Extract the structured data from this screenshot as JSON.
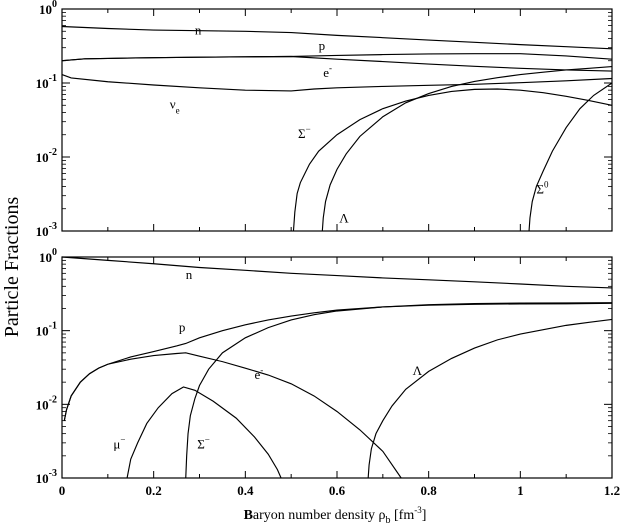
{
  "figure": {
    "ylabel": "Particle Fractions",
    "xlabel_parts": {
      "lead": "B",
      "rest": "aryon number density ",
      "sym": "ρ",
      "sub": "b",
      "unit_open": " [fm",
      "unit_exp": "-3",
      "unit_close": "]"
    }
  },
  "chart_data": [
    {
      "type": "line",
      "panel": "top",
      "yscale": "log",
      "xlim": [
        0,
        1.2
      ],
      "ylim": [
        0.001,
        1
      ],
      "xticks": [
        0,
        0.2,
        0.4,
        0.6,
        0.8,
        1,
        1.2
      ],
      "yticks": [
        {
          "value": 0.001,
          "base": "10",
          "exp": "-3"
        },
        {
          "value": 0.01,
          "base": "10",
          "exp": "-2"
        },
        {
          "value": 0.1,
          "base": "10",
          "exp": "-1"
        },
        {
          "value": 1,
          "base": "10",
          "exp": "0"
        }
      ],
      "series": [
        {
          "name": "n",
          "label": {
            "base": "n"
          },
          "label_at": [
            0.29,
            0.45
          ],
          "points": [
            [
              0,
              0.58
            ],
            [
              0.1,
              0.545
            ],
            [
              0.2,
              0.52
            ],
            [
              0.3,
              0.51
            ],
            [
              0.4,
              0.5
            ],
            [
              0.5,
              0.48
            ],
            [
              0.6,
              0.44
            ],
            [
              0.7,
              0.41
            ],
            [
              0.8,
              0.38
            ],
            [
              0.9,
              0.355
            ],
            [
              1.0,
              0.33
            ],
            [
              1.1,
              0.31
            ],
            [
              1.2,
              0.29
            ]
          ]
        },
        {
          "name": "p",
          "label": {
            "base": "p"
          },
          "label_at": [
            0.56,
            0.28
          ],
          "points": [
            [
              0,
              0.2
            ],
            [
              0.05,
              0.212
            ],
            [
              0.1,
              0.215
            ],
            [
              0.2,
              0.22
            ],
            [
              0.3,
              0.223
            ],
            [
              0.4,
              0.226
            ],
            [
              0.5,
              0.228
            ],
            [
              0.55,
              0.232
            ],
            [
              0.6,
              0.236
            ],
            [
              0.7,
              0.242
            ],
            [
              0.8,
              0.247
            ],
            [
              0.9,
              0.249
            ],
            [
              1.0,
              0.249
            ],
            [
              1.1,
              0.232
            ],
            [
              1.2,
              0.21
            ]
          ]
        },
        {
          "name": "e-",
          "label": {
            "base": "e",
            "sup": "-"
          },
          "label_at": [
            0.57,
            0.12
          ],
          "points": [
            [
              0,
              0.2
            ],
            [
              0.05,
              0.212
            ],
            [
              0.1,
              0.215
            ],
            [
              0.2,
              0.22
            ],
            [
              0.3,
              0.223
            ],
            [
              0.4,
              0.226
            ],
            [
              0.5,
              0.228
            ],
            [
              0.6,
              0.21
            ],
            [
              0.7,
              0.195
            ],
            [
              0.8,
              0.18
            ],
            [
              0.9,
              0.168
            ],
            [
              1.0,
              0.158
            ],
            [
              1.1,
              0.15
            ],
            [
              1.2,
              0.145
            ]
          ]
        },
        {
          "name": "νe",
          "label": {
            "base": "ν",
            "sub": "e"
          },
          "label_at": [
            0.235,
            0.045
          ],
          "points": [
            [
              0,
              0.13
            ],
            [
              0.02,
              0.117
            ],
            [
              0.1,
              0.104
            ],
            [
              0.2,
              0.094
            ],
            [
              0.3,
              0.086
            ],
            [
              0.4,
              0.08
            ],
            [
              0.5,
              0.078
            ],
            [
              0.55,
              0.083
            ],
            [
              0.6,
              0.086
            ],
            [
              0.7,
              0.09
            ],
            [
              0.8,
              0.093
            ],
            [
              0.9,
              0.096
            ],
            [
              1.0,
              0.101
            ],
            [
              1.1,
              0.107
            ],
            [
              1.2,
              0.115
            ]
          ]
        },
        {
          "name": "Σ-",
          "label": {
            "base": "Σ",
            "sup": "−"
          },
          "label_at": [
            0.515,
            0.018
          ],
          "points": [
            [
              0.505,
              0.001
            ],
            [
              0.508,
              0.0018
            ],
            [
              0.513,
              0.0032
            ],
            [
              0.52,
              0.0045
            ],
            [
              0.53,
              0.006
            ],
            [
              0.54,
              0.008
            ],
            [
              0.56,
              0.012
            ],
            [
              0.6,
              0.02
            ],
            [
              0.65,
              0.032
            ],
            [
              0.7,
              0.045
            ],
            [
              0.75,
              0.057
            ],
            [
              0.8,
              0.068
            ],
            [
              0.85,
              0.077
            ],
            [
              0.9,
              0.082
            ],
            [
              0.95,
              0.083
            ],
            [
              1.0,
              0.08
            ],
            [
              1.05,
              0.074
            ],
            [
              1.1,
              0.066
            ],
            [
              1.15,
              0.058
            ],
            [
              1.2,
              0.05
            ]
          ]
        },
        {
          "name": "Λ",
          "label": {
            "base": "Λ"
          },
          "label_at": [
            0.605,
            0.0013
          ],
          "points": [
            [
              0.568,
              0.001
            ],
            [
              0.57,
              0.0015
            ],
            [
              0.575,
              0.0025
            ],
            [
              0.585,
              0.0042
            ],
            [
              0.6,
              0.0068
            ],
            [
              0.62,
              0.011
            ],
            [
              0.65,
              0.019
            ],
            [
              0.7,
              0.035
            ],
            [
              0.75,
              0.054
            ],
            [
              0.8,
              0.072
            ],
            [
              0.85,
              0.09
            ],
            [
              0.9,
              0.105
            ],
            [
              0.95,
              0.118
            ],
            [
              1.0,
              0.13
            ],
            [
              1.05,
              0.14
            ],
            [
              1.1,
              0.15
            ],
            [
              1.15,
              0.158
            ],
            [
              1.2,
              0.167
            ]
          ]
        },
        {
          "name": "Σ0",
          "label": {
            "base": "Σ",
            "sup": "0"
          },
          "label_at": [
            1.035,
            0.0032
          ],
          "points": [
            [
              1.019,
              0.001
            ],
            [
              1.021,
              0.0015
            ],
            [
              1.026,
              0.0025
            ],
            [
              1.035,
              0.004
            ],
            [
              1.05,
              0.0065
            ],
            [
              1.07,
              0.012
            ],
            [
              1.1,
              0.025
            ],
            [
              1.13,
              0.045
            ],
            [
              1.16,
              0.068
            ],
            [
              1.2,
              0.1
            ]
          ]
        }
      ]
    },
    {
      "type": "line",
      "panel": "bottom",
      "yscale": "log",
      "xlim": [
        0,
        1.2
      ],
      "ylim": [
        0.001,
        1
      ],
      "xticks": [
        0,
        0.2,
        0.4,
        0.6,
        0.8,
        1,
        1.2
      ],
      "yticks": [
        {
          "value": 0.001,
          "base": "10",
          "exp": "-3"
        },
        {
          "value": 0.01,
          "base": "10",
          "exp": "-2"
        },
        {
          "value": 0.1,
          "base": "10",
          "exp": "-1"
        },
        {
          "value": 1,
          "base": "10",
          "exp": "0"
        }
      ],
      "series": [
        {
          "name": "n",
          "label": {
            "base": "n"
          },
          "label_at": [
            0.27,
            0.5
          ],
          "points": [
            [
              0,
              1.0
            ],
            [
              0.1,
              0.9
            ],
            [
              0.2,
              0.81
            ],
            [
              0.3,
              0.72
            ],
            [
              0.4,
              0.66
            ],
            [
              0.5,
              0.6
            ],
            [
              0.6,
              0.56
            ],
            [
              0.7,
              0.52
            ],
            [
              0.8,
              0.49
            ],
            [
              0.9,
              0.46
            ],
            [
              1.0,
              0.43
            ],
            [
              1.1,
              0.4
            ],
            [
              1.2,
              0.38
            ]
          ]
        },
        {
          "name": "p",
          "label": {
            "base": "p"
          },
          "label_at": [
            0.255,
            0.097
          ],
          "points": [
            [
              0.005,
              0.006
            ],
            [
              0.01,
              0.0085
            ],
            [
              0.02,
              0.013
            ],
            [
              0.04,
              0.02
            ],
            [
              0.06,
              0.026
            ],
            [
              0.08,
              0.031
            ],
            [
              0.1,
              0.035
            ],
            [
              0.15,
              0.044
            ],
            [
              0.2,
              0.052
            ],
            [
              0.25,
              0.062
            ],
            [
              0.27,
              0.067
            ],
            [
              0.3,
              0.08
            ],
            [
              0.35,
              0.1
            ],
            [
              0.4,
              0.12
            ],
            [
              0.45,
              0.14
            ],
            [
              0.5,
              0.158
            ],
            [
              0.55,
              0.175
            ],
            [
              0.6,
              0.19
            ],
            [
              0.7,
              0.21
            ],
            [
              0.8,
              0.225
            ],
            [
              0.9,
              0.233
            ],
            [
              1.0,
              0.237
            ],
            [
              1.1,
              0.238
            ],
            [
              1.2,
              0.24
            ]
          ]
        },
        {
          "name": "e-",
          "label": {
            "base": "e",
            "sup": "-"
          },
          "label_at": [
            0.42,
            0.022
          ],
          "points": [
            [
              0.005,
              0.006
            ],
            [
              0.01,
              0.0085
            ],
            [
              0.02,
              0.013
            ],
            [
              0.04,
              0.02
            ],
            [
              0.06,
              0.026
            ],
            [
              0.08,
              0.031
            ],
            [
              0.1,
              0.035
            ],
            [
              0.15,
              0.041
            ],
            [
              0.2,
              0.046
            ],
            [
              0.25,
              0.049
            ],
            [
              0.27,
              0.05
            ],
            [
              0.3,
              0.045
            ],
            [
              0.35,
              0.038
            ],
            [
              0.4,
              0.031
            ],
            [
              0.45,
              0.025
            ],
            [
              0.5,
              0.019
            ],
            [
              0.55,
              0.013
            ],
            [
              0.6,
              0.008
            ],
            [
              0.65,
              0.0045
            ],
            [
              0.7,
              0.0023
            ],
            [
              0.74,
              0.001
            ]
          ]
        },
        {
          "name": "μ-",
          "label": {
            "base": "μ",
            "sup": "−"
          },
          "label_at": [
            0.112,
            0.0025
          ],
          "points": [
            [
              0.142,
              0.001
            ],
            [
              0.15,
              0.0018
            ],
            [
              0.165,
              0.003
            ],
            [
              0.185,
              0.0055
            ],
            [
              0.21,
              0.009
            ],
            [
              0.24,
              0.014
            ],
            [
              0.265,
              0.0172
            ],
            [
              0.29,
              0.0155
            ],
            [
              0.33,
              0.011
            ],
            [
              0.38,
              0.0065
            ],
            [
              0.42,
              0.0036
            ],
            [
              0.45,
              0.0021
            ],
            [
              0.47,
              0.0013
            ],
            [
              0.478,
              0.001
            ]
          ]
        },
        {
          "name": "Σ-",
          "label": {
            "base": "Σ",
            "sup": "−"
          },
          "label_at": [
            0.295,
            0.0025
          ],
          "points": [
            [
              0.27,
              0.001
            ],
            [
              0.272,
              0.002
            ],
            [
              0.275,
              0.004
            ],
            [
              0.28,
              0.007
            ],
            [
              0.29,
              0.012
            ],
            [
              0.3,
              0.018
            ],
            [
              0.32,
              0.03
            ],
            [
              0.35,
              0.05
            ],
            [
              0.4,
              0.08
            ],
            [
              0.45,
              0.11
            ],
            [
              0.5,
              0.14
            ],
            [
              0.55,
              0.165
            ],
            [
              0.6,
              0.185
            ],
            [
              0.7,
              0.21
            ],
            [
              0.8,
              0.222
            ],
            [
              0.9,
              0.228
            ],
            [
              1.0,
              0.231
            ],
            [
              1.1,
              0.232
            ],
            [
              1.2,
              0.235
            ]
          ]
        },
        {
          "name": "Λ",
          "label": {
            "base": "Λ"
          },
          "label_at": [
            0.765,
            0.025
          ],
          "points": [
            [
              0.668,
              0.001
            ],
            [
              0.67,
              0.0015
            ],
            [
              0.675,
              0.0025
            ],
            [
              0.685,
              0.004
            ],
            [
              0.7,
              0.006
            ],
            [
              0.72,
              0.0095
            ],
            [
              0.75,
              0.016
            ],
            [
              0.8,
              0.028
            ],
            [
              0.85,
              0.042
            ],
            [
              0.9,
              0.058
            ],
            [
              0.95,
              0.075
            ],
            [
              1.0,
              0.09
            ],
            [
              1.05,
              0.103
            ],
            [
              1.1,
              0.118
            ],
            [
              1.15,
              0.13
            ],
            [
              1.2,
              0.142
            ]
          ]
        }
      ]
    }
  ]
}
